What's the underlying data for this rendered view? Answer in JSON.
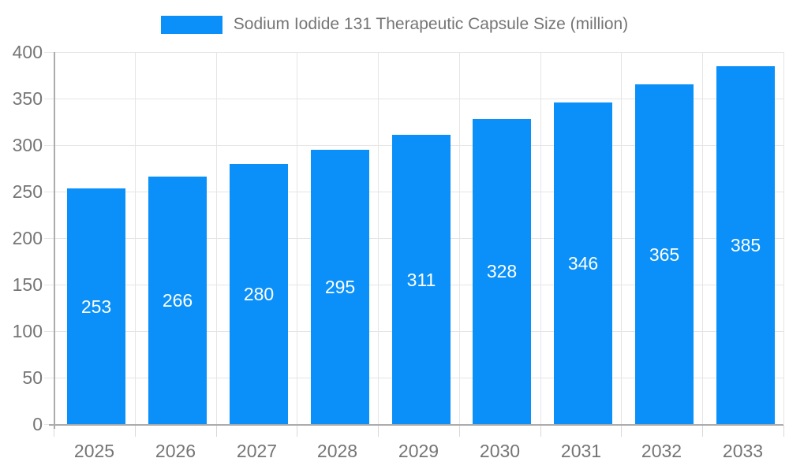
{
  "chart_data": {
    "type": "bar",
    "title": "Sodium Iodide 131 Therapeutic Capsule Size (million)",
    "categories": [
      "2025",
      "2026",
      "2027",
      "2028",
      "2029",
      "2030",
      "2031",
      "2032",
      "2033"
    ],
    "values": [
      253,
      266,
      280,
      295,
      311,
      328,
      346,
      365,
      385
    ],
    "series": [
      {
        "name": "Sodium Iodide 131 Therapeutic Capsule Size (million)",
        "values": [
          253,
          266,
          280,
          295,
          311,
          328,
          346,
          365,
          385
        ]
      }
    ],
    "xlabel": "",
    "ylabel": "",
    "ylim": [
      0,
      400
    ],
    "ytick_step": 50,
    "ytick_labels": [
      "0",
      "50",
      "100",
      "150",
      "200",
      "250",
      "300",
      "350",
      "400"
    ],
    "grid": true,
    "legend_position": "top",
    "bar_labels_inside": true,
    "colors": {
      "bar": "#0a90f8",
      "axis_line": "#ababab",
      "gridline": "#e5e5e5",
      "tick_line": "#d9d9d9",
      "tick_text": "#757575",
      "bar_label_text": "#ffffff",
      "legend_text": "#757575",
      "background": "#ffffff"
    }
  }
}
